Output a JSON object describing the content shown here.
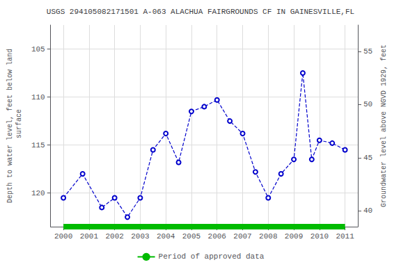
{
  "chart_data": {
    "type": "line",
    "title": "USGS 294105082171501 A-063 ALACHUA FAIRGROUNDS CF IN GAINESVILLE,FL",
    "ylabel": "Depth to water level, feet below land\n surface",
    "y2label": "Groundwater level above NGVD 1929, feet",
    "x": [
      2000.0,
      2000.75,
      2001.5,
      2002.0,
      2002.5,
      2003.0,
      2003.5,
      2004.0,
      2004.5,
      2005.0,
      2005.5,
      2006.0,
      2006.5,
      2007.0,
      2007.5,
      2008.0,
      2008.5,
      2009.0,
      2009.35,
      2009.7,
      2010.0,
      2010.5,
      2011.0
    ],
    "series": [
      {
        "color": "#0000cc",
        "marker": "circle-open",
        "line_style": "dashed",
        "values": [
          120.5,
          118.0,
          121.5,
          120.5,
          122.5,
          120.5,
          115.5,
          113.8,
          116.8,
          111.5,
          111.0,
          110.3,
          112.5,
          113.8,
          117.8,
          120.5,
          118.0,
          116.5,
          107.5,
          116.5,
          114.5,
          114.8,
          115.5
        ]
      },
      {
        "name": "Period of approved data",
        "color": "#00bb00",
        "marker": "none",
        "line_style": "solid",
        "values": [
          123.5,
          123.5,
          123.5,
          123.5,
          123.5,
          123.5,
          123.5,
          123.5,
          123.5,
          123.5,
          123.5,
          123.5,
          123.5,
          123.5,
          123.5,
          123.5,
          123.5,
          123.5,
          123.5,
          123.5,
          123.5,
          123.5,
          123.5
        ]
      }
    ],
    "xlim": [
      1999.5,
      2011.5
    ],
    "xticks": [
      2000,
      2001,
      2002,
      2003,
      2004,
      2005,
      2006,
      2007,
      2008,
      2009,
      2010,
      2011
    ],
    "ylim": [
      123.5,
      102.5
    ],
    "yticks": [
      105,
      110,
      115,
      120
    ],
    "y2lim": [
      38.5,
      57.5
    ],
    "y2ticks": [
      55,
      50,
      45,
      40
    ],
    "grid": true,
    "legend": "bottom"
  }
}
